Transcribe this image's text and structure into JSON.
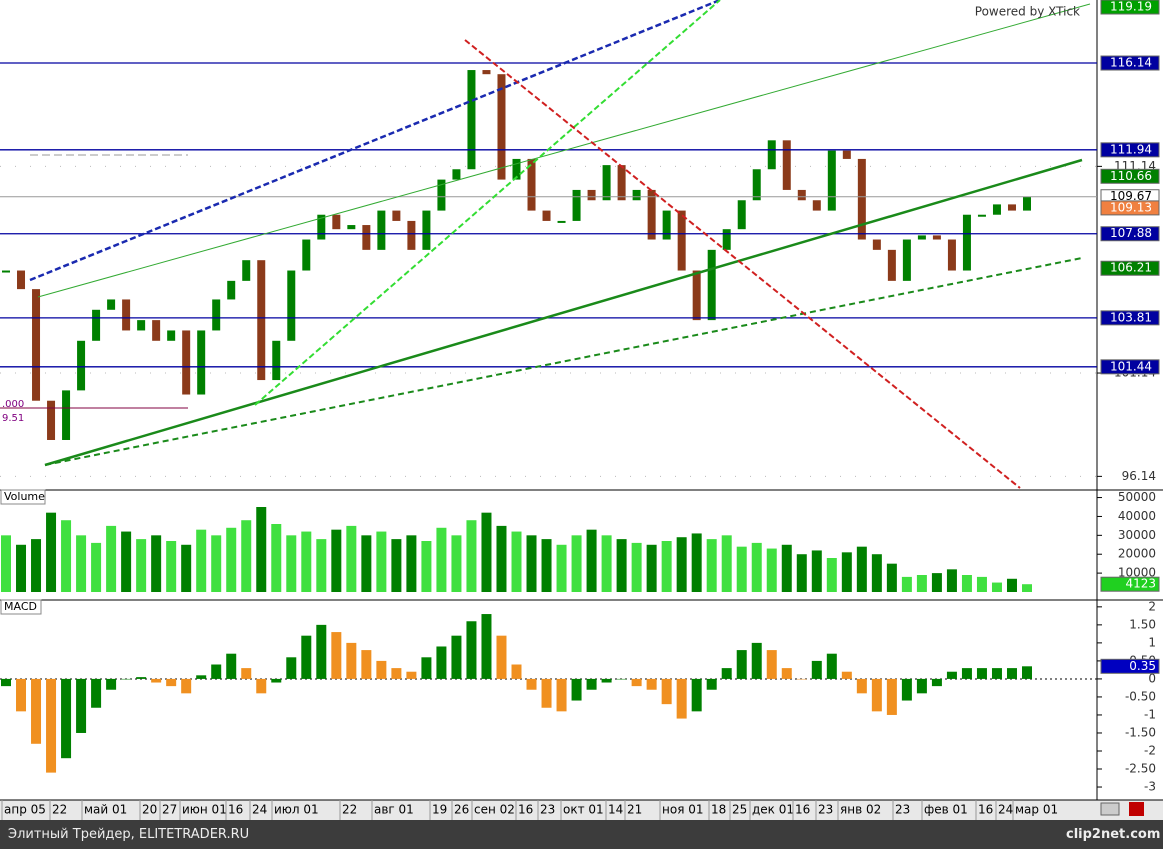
{
  "watermark": "Powered by XTick",
  "left_labels": [
    ".000",
    "9.51"
  ],
  "footer": {
    "left": "Элитный Трейдер, ELITETRADER.RU",
    "right": "clip2net.com"
  },
  "time_labels": [
    "апр 05",
    "22",
    "май 01",
    "20",
    "27",
    "июн 01",
    "16",
    "24",
    "июл 01",
    "22",
    "авг 01",
    "19",
    "26",
    "сен 02",
    "16",
    "23",
    "окт 01",
    "14",
    "21",
    "ноя 01",
    "18",
    "25",
    "дек 01",
    "16",
    "23",
    "янв 02",
    "23",
    "фев 01",
    "16",
    "24",
    "мар 01"
  ],
  "chart_data": [
    {
      "type": "candlestick",
      "closes": [
        106.1,
        105.2,
        99.8,
        97.9,
        100.3,
        102.7,
        104.2,
        104.7,
        103.2,
        103.7,
        102.7,
        103.2,
        100.1,
        103.2,
        104.7,
        105.6,
        106.6,
        100.8,
        102.7,
        106.1,
        107.6,
        108.8,
        108.1,
        108.3,
        107.1,
        109.0,
        108.5,
        107.1,
        109.0,
        110.5,
        111.0,
        115.8,
        115.6,
        110.5,
        111.5,
        109.0,
        108.5,
        108.5,
        110.0,
        109.5,
        111.2,
        109.5,
        110.0,
        107.6,
        109.0,
        106.1,
        103.7,
        107.1,
        108.1,
        109.5,
        111.0,
        112.4,
        110.0,
        109.5,
        109.0,
        111.9,
        111.5,
        107.6,
        107.1,
        105.6,
        107.6,
        107.8,
        107.6,
        106.1,
        108.8,
        108.8,
        109.3,
        109.0,
        109.67
      ],
      "up_color": "#008000",
      "down_color": "#8b3a1a",
      "ylim": [
        95.48,
        119.19
      ],
      "yticks": [
        96.14,
        101.14,
        111.14
      ],
      "grid": true,
      "price_markers": [
        {
          "value": 119.19,
          "color": "#00a000",
          "text_color": "#ffffff",
          "line": false
        },
        {
          "value": 116.14,
          "color": "#0000a0",
          "text_color": "#ffffff",
          "line": true
        },
        {
          "value": 111.94,
          "color": "#0000a0",
          "text_color": "#ffffff",
          "line": true
        },
        {
          "value": 110.66,
          "color": "#008000",
          "text_color": "#ffffff",
          "line": false
        },
        {
          "value": 109.67,
          "color": "#ffffff",
          "text_color": "#000000",
          "line": true
        },
        {
          "value": 109.13,
          "color": "#f08040",
          "text_color": "#ffffff",
          "line": false
        },
        {
          "value": 107.88,
          "color": "#0000a0",
          "text_color": "#ffffff",
          "line": true
        },
        {
          "value": 106.21,
          "color": "#008000",
          "text_color": "#ffffff",
          "line": false
        },
        {
          "value": 103.81,
          "color": "#0000a0",
          "text_color": "#ffffff",
          "line": true
        },
        {
          "value": 101.44,
          "color": "#0000a0",
          "text_color": "#ffffff",
          "line": true
        }
      ]
    },
    {
      "type": "bar",
      "title": "Volume",
      "values": [
        30000,
        25000,
        28000,
        42000,
        38000,
        30000,
        26000,
        35000,
        32000,
        28000,
        30000,
        27000,
        25000,
        33000,
        30000,
        34000,
        38000,
        45000,
        36000,
        30000,
        32000,
        28000,
        33000,
        35000,
        30000,
        32000,
        28000,
        30000,
        27000,
        34000,
        30000,
        38000,
        42000,
        35000,
        32000,
        30000,
        28000,
        25000,
        30000,
        33000,
        30000,
        28000,
        26000,
        25000,
        27000,
        29000,
        31000,
        28000,
        30000,
        24000,
        26000,
        23000,
        25000,
        20000,
        22000,
        18000,
        21000,
        24000,
        20000,
        15000,
        8000,
        9000,
        10000,
        12000,
        9000,
        8000,
        5000,
        7000,
        4123
      ],
      "up_color": "#40e040",
      "down_color": "#008000",
      "ylim": [
        0,
        54000
      ],
      "yticks": [
        10000,
        20000,
        30000,
        40000,
        50000
      ]
    },
    {
      "type": "bar",
      "title": "MACD",
      "values": [
        -0.2,
        -0.9,
        -1.8,
        -2.6,
        -2.2,
        -1.5,
        -0.8,
        -0.3,
        0.0,
        0.05,
        -0.1,
        -0.2,
        -0.4,
        0.1,
        0.4,
        0.7,
        0.3,
        -0.4,
        -0.1,
        0.6,
        1.2,
        1.5,
        1.3,
        1.0,
        0.8,
        0.5,
        0.3,
        0.2,
        0.6,
        0.9,
        1.2,
        1.6,
        1.8,
        1.2,
        0.4,
        -0.3,
        -0.8,
        -0.9,
        -0.6,
        -0.3,
        -0.1,
        0.0,
        -0.2,
        -0.3,
        -0.7,
        -1.1,
        -0.9,
        -0.3,
        0.3,
        0.8,
        1.0,
        0.8,
        0.3,
        0.0,
        0.5,
        0.7,
        0.2,
        -0.4,
        -0.9,
        -1.0,
        -0.6,
        -0.4,
        -0.2,
        0.2,
        0.3,
        0.3,
        0.3,
        0.3,
        0.35
      ],
      "up_color": "#008000",
      "down_color": "#f09020",
      "ylim": [
        -3.36,
        2.19
      ],
      "yticks": [
        2,
        {
          "value": 1.5,
          "label": "1.50"
        },
        1,
        {
          "value": 0.5,
          "label": "0.50"
        },
        0,
        {
          "value": -0.5,
          "label": "-0.50"
        },
        -1,
        {
          "value": -1.5,
          "label": "-1.50"
        },
        -2,
        {
          "value": -2.5,
          "label": "-2.50"
        },
        -3
      ]
    }
  ]
}
